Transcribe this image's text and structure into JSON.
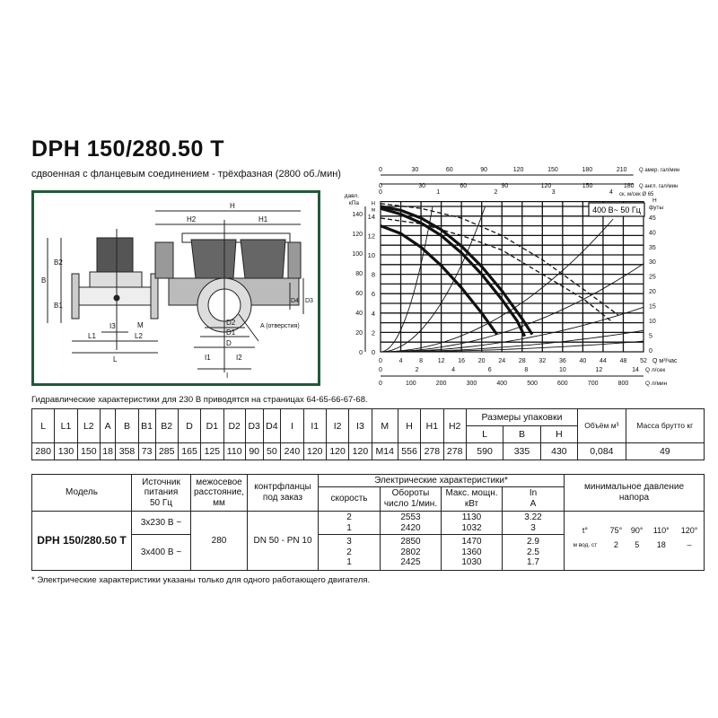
{
  "header": {
    "title": "DPH 150/280.50 T",
    "subtitle": "сдвоенная с фланцевым соединением - трёхфазная (2800 об./мин)"
  },
  "drawing": {
    "border_color": "#1f5a3a",
    "labels": {
      "H": "H",
      "H1": "H1",
      "H2": "H2",
      "B": "B",
      "B1": "B1",
      "B2": "B2",
      "L": "L",
      "L1": "L1",
      "L2": "L2",
      "I3": "I3",
      "M": "M",
      "D": "D",
      "D1": "D1",
      "D2": "D2",
      "D3": "D3",
      "D4": "D4",
      "I": "I",
      "I1": "I1",
      "I2": "I2",
      "A": "A (отверстия)"
    }
  },
  "chart_data": {
    "type": "line",
    "badge": "400 В~ 50 Гц",
    "xlabel": "Q м³/час",
    "ylabel_left_outer": "давл. кПа",
    "ylabel_left_inner": "H м",
    "ylabel_right": "H футы",
    "x_ticks": [
      "0",
      "4",
      "8",
      "12",
      "16",
      "20",
      "24",
      "28",
      "32",
      "36",
      "40",
      "44",
      "48",
      "52"
    ],
    "xlim": [
      0,
      52
    ],
    "y_m_ticks": [
      "0",
      "2",
      "4",
      "6",
      "8",
      "10",
      "12",
      "14"
    ],
    "ylim_m": [
      0,
      15.5
    ],
    "y_kpa_ticks": [
      "0",
      "20",
      "40",
      "60",
      "80",
      "100",
      "120",
      "140"
    ],
    "y_ft_ticks": [
      "0",
      "5",
      "10",
      "15",
      "20",
      "25",
      "30",
      "35",
      "40",
      "45"
    ],
    "grid": true,
    "top_axes": [
      {
        "label": "Q амер. гал/мин",
        "ticks": [
          "0",
          "30",
          "60",
          "90",
          "120",
          "150",
          "180",
          "210"
        ]
      },
      {
        "label": "Q англ. гал/мин",
        "ticks": [
          "0",
          "30",
          "60",
          "90",
          "120",
          "150",
          "180"
        ]
      },
      {
        "label": "ск. м/сек Ø 65",
        "ticks": [
          "0",
          "1",
          "2",
          "3",
          "4"
        ]
      }
    ],
    "bottom_axes": [
      {
        "label": "Q л/сек",
        "ticks": [
          "0",
          "2",
          "4",
          "6",
          "8",
          "10",
          "12",
          "14"
        ]
      },
      {
        "label": "Q л/мин",
        "ticks": [
          "0",
          "100",
          "200",
          "300",
          "400",
          "500",
          "600",
          "700",
          "800"
        ]
      }
    ],
    "series": [
      {
        "style": "solid",
        "points": [
          [
            0,
            15
          ],
          [
            4,
            14.6
          ],
          [
            8,
            13.8
          ],
          [
            12,
            12.6
          ],
          [
            16,
            10.9
          ],
          [
            20,
            8.8
          ],
          [
            24,
            6.3
          ],
          [
            28,
            3.4
          ],
          [
            30,
            1.8
          ]
        ]
      },
      {
        "style": "solid",
        "points": [
          [
            0,
            14.8
          ],
          [
            4,
            14.2
          ],
          [
            8,
            13.3
          ],
          [
            12,
            12
          ],
          [
            16,
            10.2
          ],
          [
            20,
            8
          ],
          [
            24,
            5.4
          ],
          [
            27,
            3.2
          ],
          [
            28.5,
            1.6
          ]
        ]
      },
      {
        "style": "solid",
        "points": [
          [
            0,
            13
          ],
          [
            4,
            12.2
          ],
          [
            8,
            10.8
          ],
          [
            12,
            8.9
          ],
          [
            16,
            6.6
          ],
          [
            20,
            4
          ],
          [
            23,
            1.8
          ]
        ]
      },
      {
        "style": "dashed",
        "points": [
          [
            0,
            15.3
          ],
          [
            8,
            14.8
          ],
          [
            16,
            13.8
          ],
          [
            24,
            12
          ],
          [
            32,
            9.5
          ],
          [
            40,
            6.5
          ],
          [
            47,
            3.8
          ]
        ]
      },
      {
        "style": "dashed",
        "points": [
          [
            0,
            13.8
          ],
          [
            8,
            13.2
          ],
          [
            16,
            12
          ],
          [
            24,
            10.5
          ],
          [
            32,
            8
          ],
          [
            40,
            5.5
          ],
          [
            46,
            3
          ]
        ]
      }
    ],
    "system_curves_end": [
      [
        10.3,
        15
      ],
      [
        20.7,
        15
      ],
      [
        46,
        13.7
      ],
      [
        52,
        9.1
      ],
      [
        52,
        4.6
      ],
      [
        52,
        2.2
      ],
      [
        52,
        1.1
      ]
    ]
  },
  "hydraulic_note": "Гидравлические характеристики для 230 В приводятся на страницах 64-65-66-67-68.",
  "dimensions_table": {
    "headers": [
      "L",
      "L1",
      "L2",
      "A",
      "B",
      "B1",
      "B2",
      "D",
      "D1",
      "D2",
      "D3",
      "D4",
      "I",
      "I1",
      "I2",
      "I3",
      "M",
      "H",
      "H1",
      "H2"
    ],
    "packaging_header": "Размеры упаковки",
    "packaging_sub": [
      "L",
      "B",
      "H"
    ],
    "volume_header": "Объём м³",
    "mass_header": "Масса брутто кг",
    "values": [
      "280",
      "130",
      "150",
      "18",
      "358",
      "73",
      "285",
      "165",
      "125",
      "110",
      "90",
      "50",
      "240",
      "120",
      "120",
      "120",
      "M14",
      "556",
      "278",
      "278",
      "590",
      "335",
      "430",
      "0,084",
      "49"
    ]
  },
  "electrical_table": {
    "h_model": "Модель",
    "h_source": [
      "Источник",
      "питания",
      "50 Гц"
    ],
    "h_distance": [
      "межосевое",
      "расстояние,",
      "мм"
    ],
    "h_flanges": [
      "контрфланцы",
      "под заказ"
    ],
    "h_electrical": "Электрические характеристики*",
    "h_speed": "скорость",
    "h_rpm": [
      "Обороты",
      "число 1/мин."
    ],
    "h_power": [
      "Макс. мощн.",
      "кВт"
    ],
    "h_current": [
      "In",
      "A"
    ],
    "h_min_pressure": [
      "минимальное давление",
      "напора"
    ],
    "model": "DPH 150/280.50 T",
    "distance": "280",
    "flanges": "DN 50 - PN 10",
    "groups": [
      {
        "source": "3x230 В ~",
        "rows": [
          {
            "speed": "2",
            "rpm": "2553",
            "power": "1130",
            "current": "3.22"
          },
          {
            "speed": "1",
            "rpm": "2420",
            "power": "1032",
            "current": "3"
          }
        ]
      },
      {
        "source": "3x400 В ~",
        "rows": [
          {
            "speed": "3",
            "rpm": "2850",
            "power": "1470",
            "current": "2.9"
          },
          {
            "speed": "2",
            "rpm": "2802",
            "power": "1360",
            "current": "2.5"
          },
          {
            "speed": "1",
            "rpm": "2425",
            "power": "1030",
            "current": "1.7"
          }
        ]
      }
    ],
    "min_pressure": {
      "temp_label": "t°",
      "temps": [
        "75°",
        "90°",
        "110°",
        "120°"
      ],
      "head_label": "м вод. ст",
      "heads": [
        "2",
        "5",
        "18",
        "–"
      ]
    }
  },
  "footnote": "* Электрические характеристики указаны только для одного работающего двигателя."
}
